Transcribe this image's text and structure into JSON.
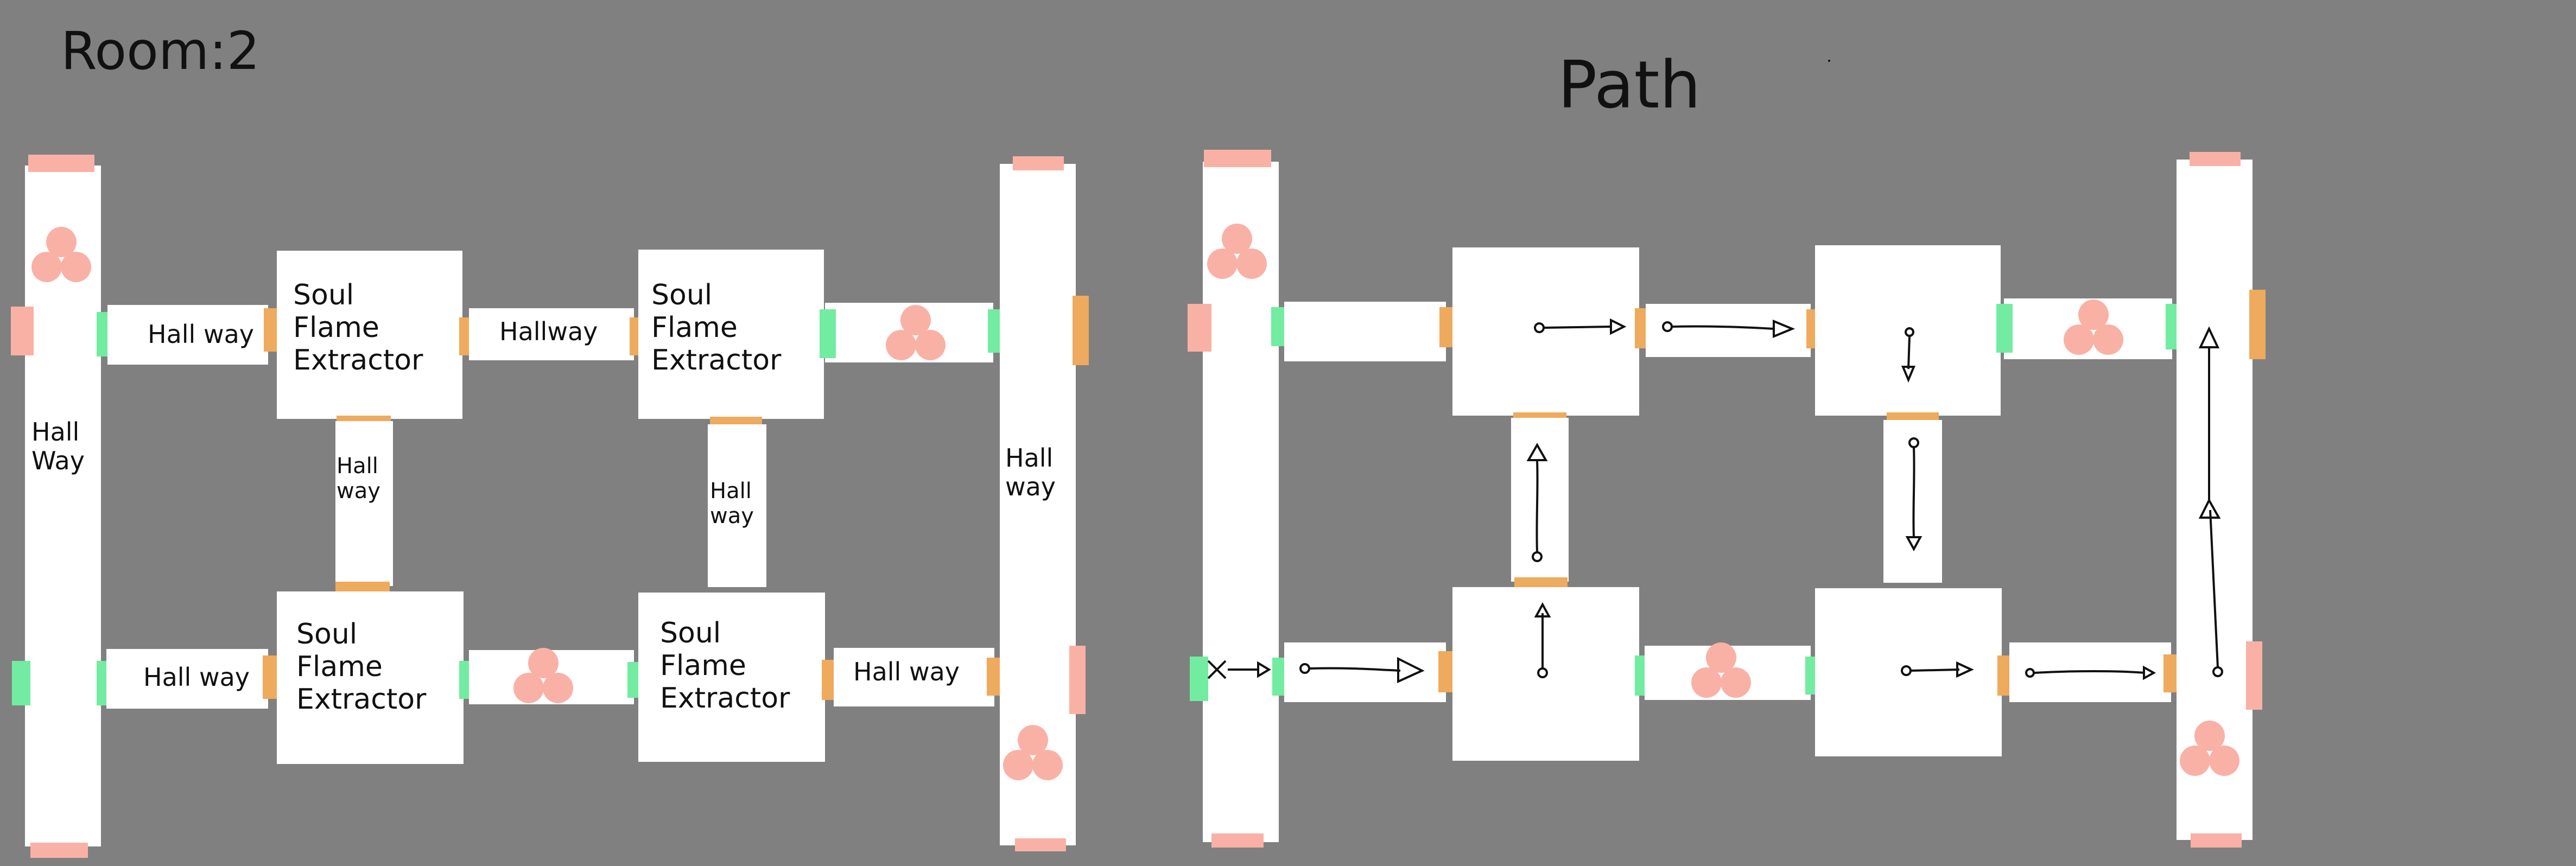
{
  "titles": {
    "left": "Room:2",
    "right": "Path"
  },
  "labels": {
    "hallway_left_vertical": "Hall\nWay",
    "hallway_right_vertical": "Hall\nway",
    "hallway_top1": "Hall way",
    "hallway_top2": "Hallway",
    "hallway_bottom1": "Hall way",
    "hallway_bottom3": "Hall way",
    "hallway_mid1": "Hall\nway",
    "hallway_mid2": "Hall\nway",
    "extractor": "Soul\n   Flame\n      Extractor"
  },
  "colors": {
    "background": "#808080",
    "room": "#ffffff",
    "door_pink": "#f9b1a6",
    "door_orange": "#eeaa5d",
    "door_green": "#72eca1",
    "gem": "#f9b1a6"
  }
}
